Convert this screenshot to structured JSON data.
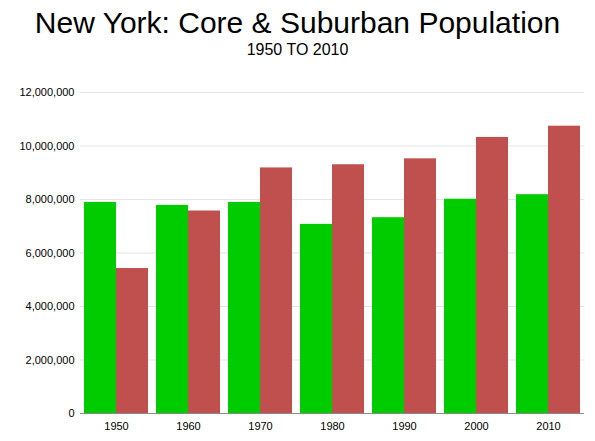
{
  "chart_data": {
    "type": "bar",
    "title": "New York: Core & Suburban Population",
    "subtitle": "1950 TO 2010",
    "categories": [
      "1950",
      "1960",
      "1970",
      "1980",
      "1990",
      "2000",
      "2010"
    ],
    "series": [
      {
        "color": "#00cc00",
        "values": [
          7890000,
          7780000,
          7890000,
          7070000,
          7320000,
          8010000,
          8180000
        ]
      },
      {
        "color": "#c0504d",
        "values": [
          5420000,
          7570000,
          9180000,
          9300000,
          9520000,
          10320000,
          10740000
        ]
      }
    ],
    "ylim": [
      0,
      12000000
    ],
    "yticks": [
      0,
      {
        "value": 2000000,
        "label": "2,000,000"
      },
      {
        "value": 4000000,
        "label": "4,000,000"
      },
      {
        "value": 6000000,
        "label": "6,000,000"
      },
      {
        "value": 8000000,
        "label": "8,000,000"
      },
      {
        "value": 10000000,
        "label": "10,000,000"
      },
      {
        "value": 12000000,
        "label": "12,000,000"
      }
    ],
    "grid": true
  }
}
